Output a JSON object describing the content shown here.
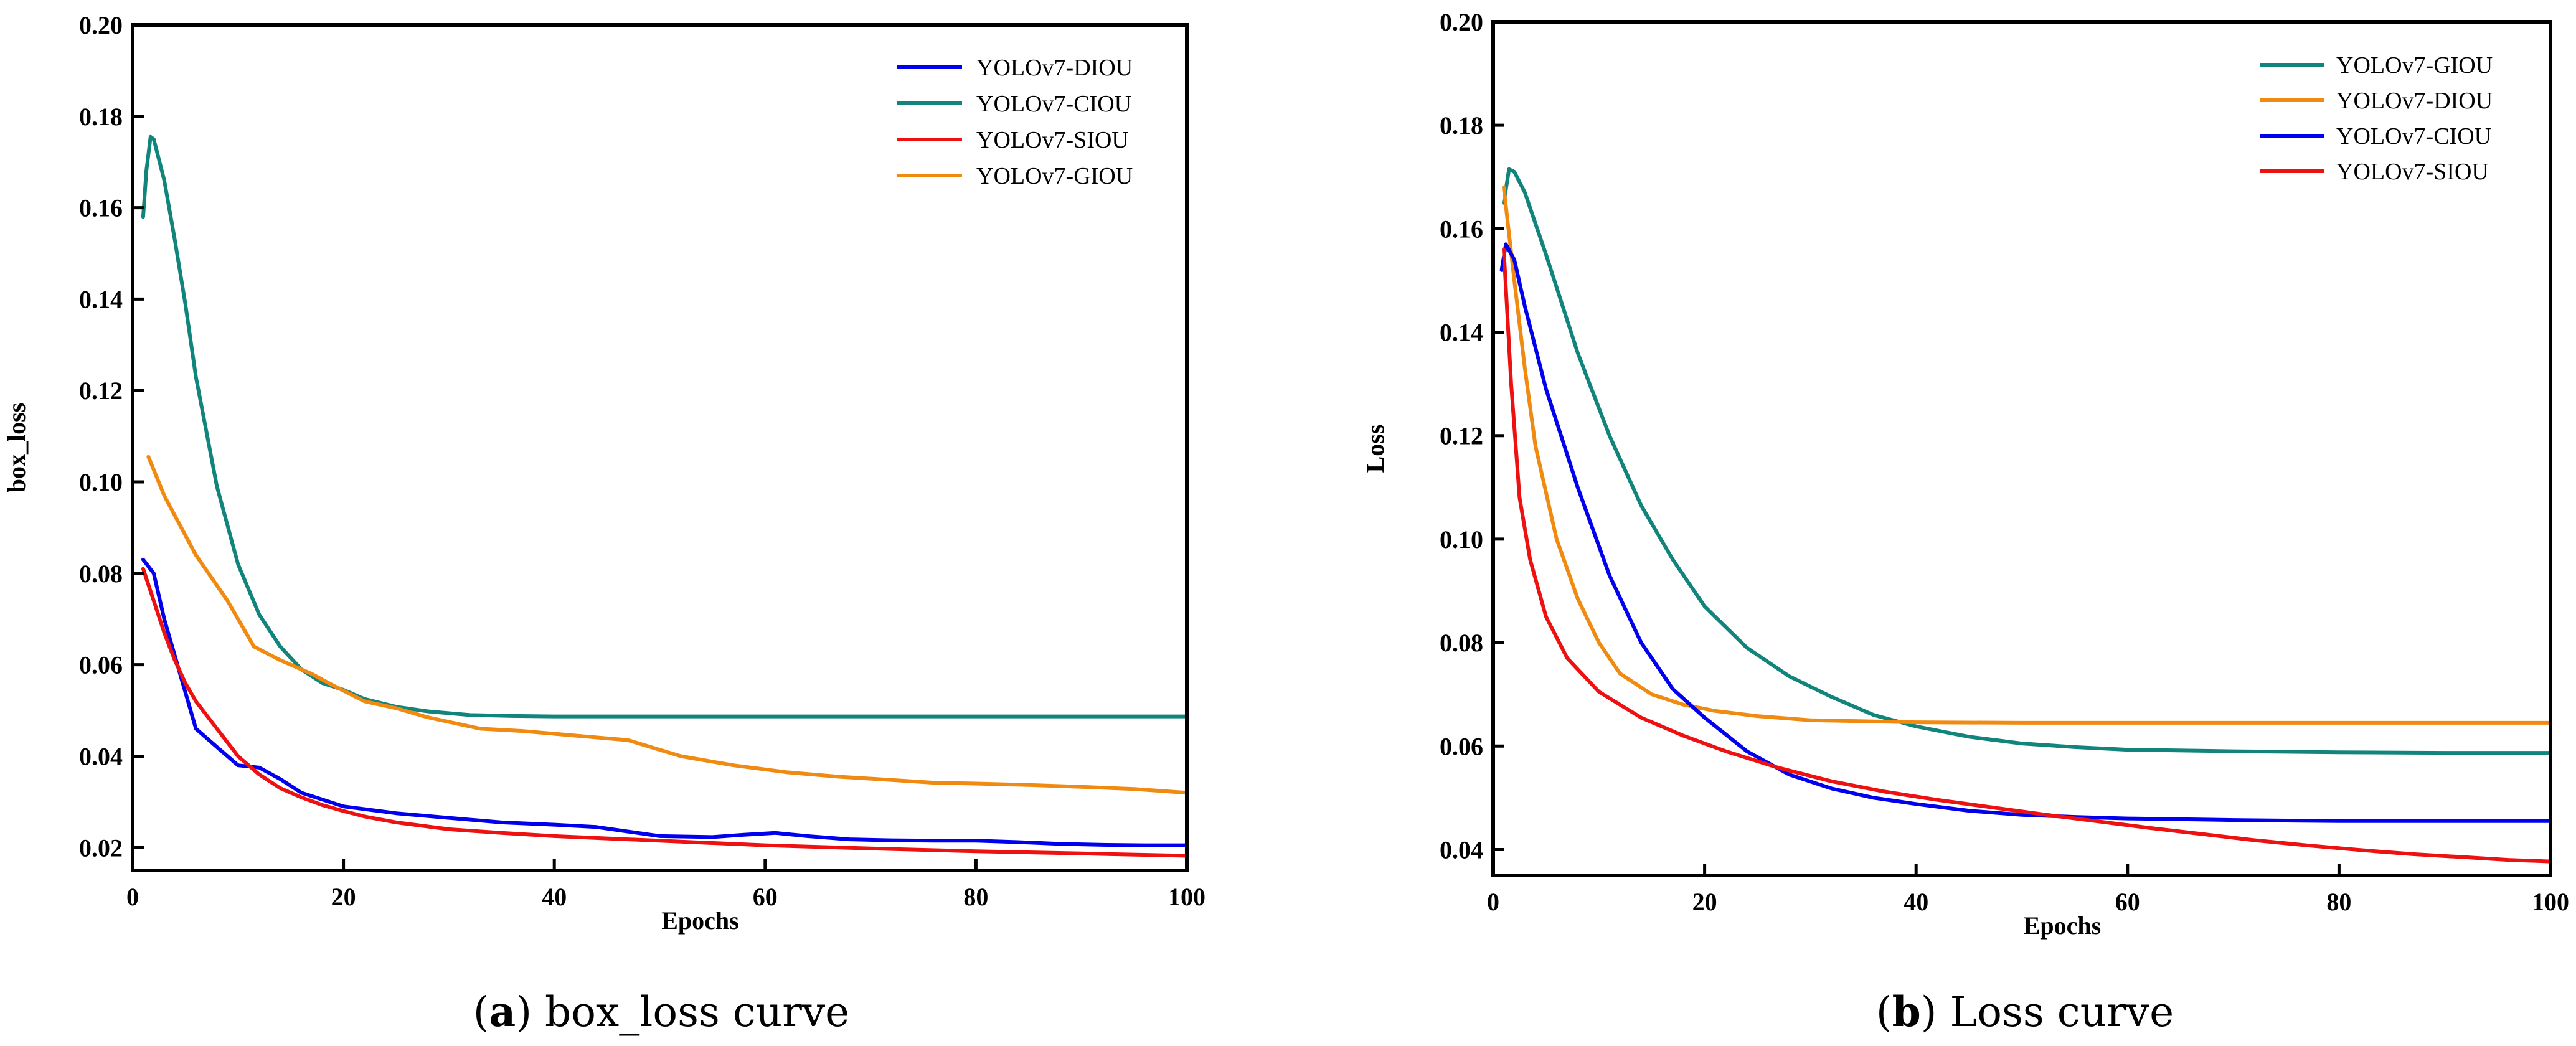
{
  "chart_data": [
    {
      "type": "line",
      "xlabel": "Epochs",
      "ylabel": "box_loss",
      "xlim": [
        0,
        100
      ],
      "ylim": [
        0.015,
        0.2
      ],
      "xticks": [
        "0",
        "20",
        "40",
        "60",
        "80",
        "100"
      ],
      "yticks": [
        "0.02",
        "0.04",
        "0.06",
        "0.08",
        "0.10",
        "0.12",
        "0.14",
        "0.16",
        "0.18",
        "0.20"
      ],
      "legend_position": "top-right",
      "caption_letter": "a",
      "caption_text": " box_loss curve",
      "series": [
        {
          "name": "YOLOv7-DIOU",
          "color": "#0000ee",
          "points": [
            [
              1,
              0.083
            ],
            [
              2,
              0.08
            ],
            [
              3,
              0.07
            ],
            [
              4,
              0.062
            ],
            [
              6,
              0.046
            ],
            [
              8,
              0.042
            ],
            [
              10,
              0.038
            ],
            [
              12,
              0.0375
            ],
            [
              14,
              0.035
            ],
            [
              16,
              0.032
            ],
            [
              20,
              0.029
            ],
            [
              25,
              0.0275
            ],
            [
              30,
              0.0265
            ],
            [
              35,
              0.0255
            ],
            [
              40,
              0.025
            ],
            [
              44,
              0.0245
            ],
            [
              47,
              0.0235
            ],
            [
              50,
              0.0225
            ],
            [
              55,
              0.0223
            ],
            [
              58,
              0.0228
            ],
            [
              61,
              0.0232
            ],
            [
              64,
              0.0225
            ],
            [
              68,
              0.0218
            ],
            [
              72,
              0.0216
            ],
            [
              76,
              0.0215
            ],
            [
              80,
              0.0215
            ],
            [
              84,
              0.0212
            ],
            [
              88,
              0.0208
            ],
            [
              92,
              0.0206
            ],
            [
              96,
              0.0205
            ],
            [
              100,
              0.0205
            ]
          ]
        },
        {
          "name": "YOLOv7-CIOU",
          "color": "#11847b",
          "points": [
            [
              1,
              0.158
            ],
            [
              1.3,
              0.168
            ],
            [
              1.7,
              0.1755
            ],
            [
              2,
              0.175
            ],
            [
              3,
              0.166
            ],
            [
              4,
              0.153
            ],
            [
              5,
              0.139
            ],
            [
              6,
              0.123
            ],
            [
              8,
              0.099
            ],
            [
              10,
              0.082
            ],
            [
              12,
              0.071
            ],
            [
              14,
              0.064
            ],
            [
              16,
              0.059
            ],
            [
              18,
              0.056
            ],
            [
              20,
              0.0545
            ],
            [
              22,
              0.0525
            ],
            [
              25,
              0.0508
            ],
            [
              28,
              0.0498
            ],
            [
              32,
              0.049
            ],
            [
              36,
              0.0488
            ],
            [
              40,
              0.0487
            ],
            [
              50,
              0.0487
            ],
            [
              60,
              0.0487
            ],
            [
              70,
              0.0487
            ],
            [
              80,
              0.0487
            ],
            [
              90,
              0.0487
            ],
            [
              100,
              0.0487
            ]
          ]
        },
        {
          "name": "YOLOv7-SIOU",
          "color": "#ee1111",
          "points": [
            [
              1,
              0.081
            ],
            [
              2,
              0.074
            ],
            [
              3,
              0.067
            ],
            [
              4,
              0.061
            ],
            [
              5,
              0.056
            ],
            [
              6,
              0.052
            ],
            [
              8,
              0.046
            ],
            [
              10,
              0.04
            ],
            [
              12,
              0.036
            ],
            [
              14,
              0.033
            ],
            [
              16,
              0.031
            ],
            [
              18,
              0.0293
            ],
            [
              20,
              0.028
            ],
            [
              22,
              0.0268
            ],
            [
              25,
              0.0255
            ],
            [
              30,
              0.024
            ],
            [
              35,
              0.0232
            ],
            [
              40,
              0.0225
            ],
            [
              50,
              0.0215
            ],
            [
              60,
              0.0205
            ],
            [
              70,
              0.0198
            ],
            [
              80,
              0.0192
            ],
            [
              90,
              0.0187
            ],
            [
              100,
              0.0182
            ]
          ]
        },
        {
          "name": "YOLOv7-GIOU",
          "color": "#f08a10",
          "points": [
            [
              1.5,
              0.1055
            ],
            [
              3,
              0.097
            ],
            [
              6,
              0.084
            ],
            [
              9,
              0.074
            ],
            [
              11.5,
              0.064
            ],
            [
              14,
              0.061
            ],
            [
              17,
              0.058
            ],
            [
              19,
              0.0555
            ],
            [
              22,
              0.052
            ],
            [
              25,
              0.0505
            ],
            [
              28,
              0.0485
            ],
            [
              33,
              0.046
            ],
            [
              37,
              0.0455
            ],
            [
              42,
              0.0445
            ],
            [
              47,
              0.0435
            ],
            [
              52,
              0.04
            ],
            [
              57,
              0.038
            ],
            [
              62,
              0.0365
            ],
            [
              67,
              0.0355
            ],
            [
              72,
              0.0348
            ],
            [
              76,
              0.0342
            ],
            [
              80,
              0.034
            ],
            [
              85,
              0.0337
            ],
            [
              90,
              0.0333
            ],
            [
              95,
              0.0328
            ],
            [
              100,
              0.032
            ]
          ]
        }
      ]
    },
    {
      "type": "line",
      "xlabel": "Epochs",
      "ylabel": "Loss",
      "xlim": [
        0,
        100
      ],
      "ylim": [
        0.035,
        0.2
      ],
      "xticks": [
        "0",
        "20",
        "40",
        "60",
        "80",
        "100"
      ],
      "yticks": [
        "0.04",
        "0.06",
        "0.08",
        "0.10",
        "0.12",
        "0.14",
        "0.16",
        "0.18",
        "0.20"
      ],
      "legend_position": "top-right",
      "caption_letter": "b",
      "caption_text": " Loss curve",
      "series": [
        {
          "name": "YOLOv7-GIOU",
          "color": "#11847b",
          "points": [
            [
              1,
              0.165
            ],
            [
              1.5,
              0.1715
            ],
            [
              2,
              0.171
            ],
            [
              3,
              0.167
            ],
            [
              5,
              0.155
            ],
            [
              8,
              0.136
            ],
            [
              11,
              0.12
            ],
            [
              14,
              0.1065
            ],
            [
              17,
              0.096
            ],
            [
              20,
              0.087
            ],
            [
              24,
              0.079
            ],
            [
              28,
              0.0735
            ],
            [
              32,
              0.0695
            ],
            [
              36,
              0.066
            ],
            [
              40,
              0.0638
            ],
            [
              45,
              0.0618
            ],
            [
              50,
              0.0605
            ],
            [
              55,
              0.0598
            ],
            [
              60,
              0.0593
            ],
            [
              70,
              0.059
            ],
            [
              80,
              0.0588
            ],
            [
              90,
              0.0587
            ],
            [
              100,
              0.0587
            ]
          ]
        },
        {
          "name": "YOLOv7-DIOU",
          "color": "#f08a10",
          "points": [
            [
              1,
              0.168
            ],
            [
              2,
              0.15
            ],
            [
              3,
              0.133
            ],
            [
              4,
              0.118
            ],
            [
              6,
              0.1
            ],
            [
              8,
              0.0885
            ],
            [
              10,
              0.08
            ],
            [
              12,
              0.074
            ],
            [
              15,
              0.07
            ],
            [
              18,
              0.068
            ],
            [
              21,
              0.0668
            ],
            [
              25,
              0.0658
            ],
            [
              30,
              0.065
            ],
            [
              40,
              0.0646
            ],
            [
              50,
              0.0645
            ],
            [
              60,
              0.0645
            ],
            [
              70,
              0.0645
            ],
            [
              80,
              0.0645
            ],
            [
              90,
              0.0645
            ],
            [
              100,
              0.0645
            ]
          ]
        },
        {
          "name": "YOLOv7-CIOU",
          "color": "#0000ee",
          "points": [
            [
              0.8,
              0.152
            ],
            [
              1.2,
              0.157
            ],
            [
              2,
              0.154
            ],
            [
              3,
              0.145
            ],
            [
              5,
              0.129
            ],
            [
              8,
              0.11
            ],
            [
              11,
              0.093
            ],
            [
              14,
              0.08
            ],
            [
              17,
              0.071
            ],
            [
              20,
              0.0655
            ],
            [
              24,
              0.059
            ],
            [
              28,
              0.0545
            ],
            [
              32,
              0.0518
            ],
            [
              36,
              0.05
            ],
            [
              40,
              0.0488
            ],
            [
              45,
              0.0475
            ],
            [
              50,
              0.0467
            ],
            [
              55,
              0.0463
            ],
            [
              60,
              0.046
            ],
            [
              70,
              0.0457
            ],
            [
              80,
              0.0455
            ],
            [
              90,
              0.0455
            ],
            [
              100,
              0.0455
            ]
          ]
        },
        {
          "name": "YOLOv7-SIOU",
          "color": "#ee1111",
          "points": [
            [
              1,
              0.156
            ],
            [
              1.7,
              0.13
            ],
            [
              2.5,
              0.108
            ],
            [
              3.5,
              0.096
            ],
            [
              5,
              0.085
            ],
            [
              7,
              0.077
            ],
            [
              10,
              0.0705
            ],
            [
              14,
              0.0655
            ],
            [
              18,
              0.062
            ],
            [
              22,
              0.059
            ],
            [
              27,
              0.0558
            ],
            [
              32,
              0.0532
            ],
            [
              37,
              0.0512
            ],
            [
              42,
              0.0496
            ],
            [
              47,
              0.0482
            ],
            [
              52,
              0.0468
            ],
            [
              57,
              0.0455
            ],
            [
              62,
              0.0442
            ],
            [
              67,
              0.043
            ],
            [
              72,
              0.0418
            ],
            [
              77,
              0.0408
            ],
            [
              82,
              0.0399
            ],
            [
              87,
              0.0391
            ],
            [
              92,
              0.0385
            ],
            [
              96,
              0.038
            ],
            [
              100,
              0.0377
            ]
          ]
        }
      ]
    }
  ]
}
